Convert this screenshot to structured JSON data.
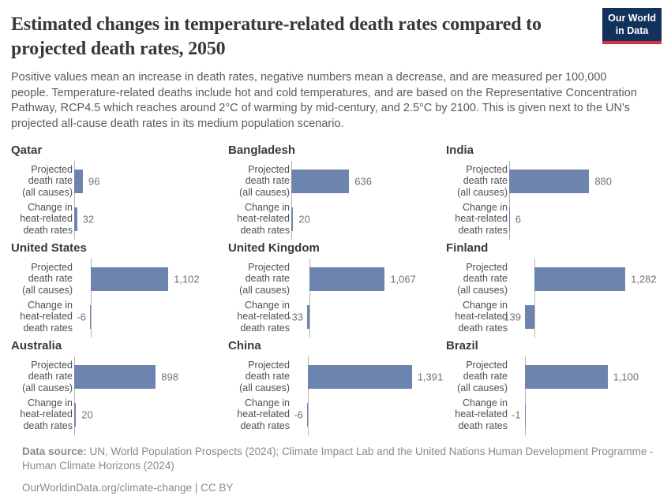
{
  "header": {
    "title": "Estimated changes in temperature-related death rates compared to\nprojected death rates, 2050",
    "subtitle": "Positive values mean an increase in death rates, negative numbers mean a decrease, and are measured per 100,000 people. Temperature-related deaths include hot and cold temperatures, and are based on the Representative Concentration Pathway, RCP4.5 which reaches around 2°C of warming by mid-century, and 2.5°C by 2100. This is given next to the UN's projected all-cause death rates in its medium population scenario.",
    "logo": {
      "line1": "Our World",
      "line2": "in Data",
      "bg_color": "#12315b",
      "accent_color": "#d2333c"
    }
  },
  "chart_data": {
    "type": "bar",
    "orientation": "horizontal",
    "title": "Estimated changes in temperature-related death rates compared to projected death rates, 2050",
    "unit": "deaths per 100,000 people",
    "bar_color": "#6d83b0",
    "grid": false,
    "bar_categories": [
      "Projected\ndeath rate\n(all causes)",
      "Change in\nheat-related\ndeath rates"
    ],
    "panels": [
      {
        "country": "Qatar",
        "projected": 96,
        "change": 32,
        "projected_label": "96",
        "change_label": "32",
        "xmax": 1320
      },
      {
        "country": "Bangladesh",
        "projected": 636,
        "change": 20,
        "projected_label": "636",
        "change_label": "20",
        "xmax": 1320
      },
      {
        "country": "India",
        "projected": 880,
        "change": 6,
        "projected_label": "880",
        "change_label": "6",
        "xmax": 1320
      },
      {
        "country": "United States",
        "projected": 1102,
        "change": -6,
        "projected_label": "1,102",
        "change_label": "-6",
        "xmax": 1700
      },
      {
        "country": "United Kingdom",
        "projected": 1067,
        "change": -33,
        "projected_label": "1,067",
        "change_label": "-33",
        "xmax": 1700
      },
      {
        "country": "Finland",
        "projected": 1282,
        "change": -139,
        "projected_label": "1,282",
        "change_label": "-139",
        "xmax": 1700
      },
      {
        "country": "Australia",
        "projected": 898,
        "change": 20,
        "projected_label": "898",
        "change_label": "20",
        "xmax": 1320
      },
      {
        "country": "China",
        "projected": 1391,
        "change": -6,
        "projected_label": "1,391",
        "change_label": "-6",
        "xmax": 1600
      },
      {
        "country": "Brazil",
        "projected": 1100,
        "change": -1,
        "projected_label": "1,100",
        "change_label": "-1",
        "xmax": 1600
      }
    ]
  },
  "footer": {
    "source_label": "Data source:",
    "source_text": " UN, World Population Prospects (2024); Climate Impact Lab and the United Nations Human Development Programme - Human Climate Horizons (2024)",
    "license": "OurWorldinData.org/climate-change | CC BY"
  }
}
